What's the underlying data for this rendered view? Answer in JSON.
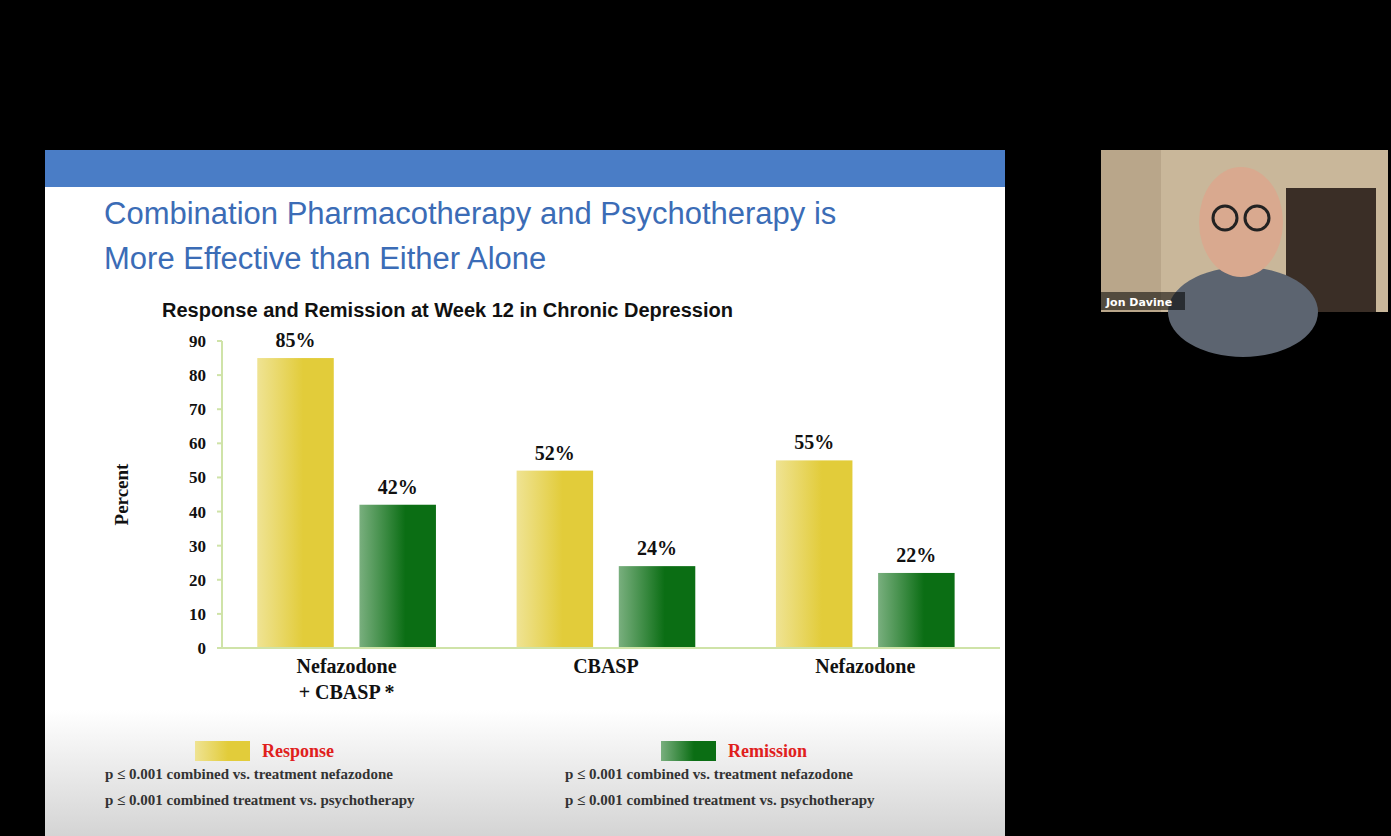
{
  "presenter": "Jon Davine",
  "chart_data": {
    "type": "bar",
    "title": "Combination Pharmacotherapy and Psychotherapy is\nMore Effective than Either Alone",
    "subtitle": "Response and Remission at Week 12 in Chronic Depression",
    "ylabel": "Percent",
    "categories": [
      "Nefazodone\n+ CBASP *",
      "CBASP",
      "Nefazodone"
    ],
    "series": [
      {
        "name": "Response",
        "color": "#e2cc3a",
        "values": [
          85,
          52,
          55
        ],
        "value_labels": [
          "85%",
          "52%",
          "55%"
        ]
      },
      {
        "name": "Remission",
        "color": "#0b6e14",
        "values": [
          42,
          24,
          22
        ],
        "value_labels": [
          "42%",
          "24%",
          "22%"
        ]
      }
    ],
    "ylim": [
      0,
      90
    ],
    "yticks": [
      0,
      10,
      20,
      30,
      40,
      50,
      60,
      70,
      80,
      90
    ],
    "grid": false,
    "legend": "bottom",
    "data_labels": true,
    "annotations": [
      "p ≤ 0.001 combined vs. treatment nefazodone",
      "p ≤ 0.001 combined treatment vs. psychotherapy",
      "p ≤ 0.001 combined vs. treatment nefazodone",
      "p ≤ 0.001 combined treatment vs. psychotherapy"
    ]
  }
}
